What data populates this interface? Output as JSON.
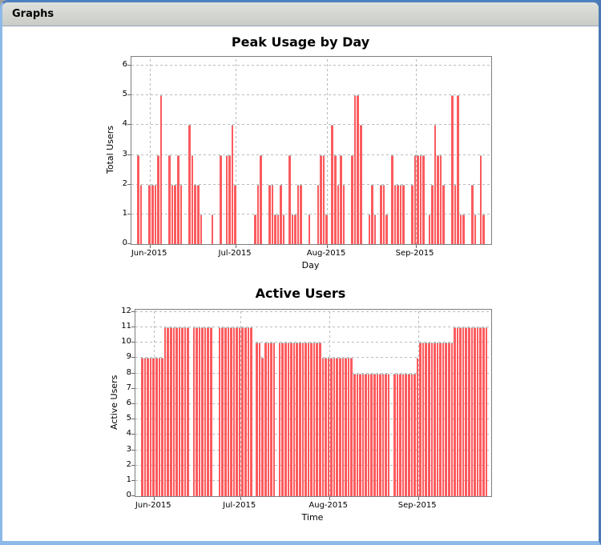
{
  "window": {
    "title": "Graphs"
  },
  "colors": {
    "bar_fill": "#FB5B5E",
    "bar_outline": "#B2B2B2",
    "gridline": "#BBBBBB",
    "plot_border": "#7F7F7F",
    "frame_blue": "#4878B4",
    "frame_light_blue": "#8DB9E8",
    "titlebar_bg": "#D3D5D1"
  },
  "chart_data": [
    {
      "type": "bar",
      "title": "Peak Usage by Day",
      "xlabel": "Day",
      "ylabel": "Total Users",
      "ylim": [
        0,
        6
      ],
      "grid": true,
      "legend": "none",
      "bar_color": "#FB5B5E",
      "y_ticks": [
        0,
        1,
        2,
        3,
        4,
        5,
        6
      ],
      "x_ticks": [
        {
          "label": "Jun-2015",
          "index": 6
        },
        {
          "label": "Jul-2015",
          "index": 36
        },
        {
          "label": "Aug-2015",
          "index": 68
        },
        {
          "label": "Sep-2015",
          "index": 99
        }
      ],
      "values": [
        0,
        0,
        3,
        2,
        0,
        0,
        2,
        2,
        2,
        3,
        5,
        0,
        0,
        3,
        2,
        2,
        3,
        2,
        0,
        0,
        4,
        3,
        2,
        2,
        1,
        0,
        0,
        0,
        1,
        0,
        0,
        3,
        0,
        3,
        3,
        4,
        2,
        0,
        0,
        0,
        0,
        0,
        0,
        1,
        2,
        3,
        0,
        0,
        2,
        2,
        1,
        1,
        2,
        1,
        0,
        3,
        1,
        1,
        2,
        2,
        0,
        0,
        1,
        0,
        0,
        2,
        3,
        3,
        1,
        0,
        4,
        3,
        2,
        3,
        2,
        0,
        0,
        3,
        5,
        5,
        4,
        0,
        0,
        1,
        2,
        1,
        0,
        2,
        2,
        1,
        0,
        3,
        2,
        2,
        2,
        2,
        0,
        0,
        2,
        3,
        3,
        3,
        3,
        0,
        1,
        2,
        4,
        3,
        3,
        2,
        0,
        0,
        5,
        2,
        5,
        1,
        1,
        0,
        0,
        2,
        1,
        0,
        3,
        1,
        0,
        0
      ]
    },
    {
      "type": "bar",
      "title": "Active Users",
      "xlabel": "Time",
      "ylabel": "Active Users",
      "ylim": [
        0,
        12
      ],
      "grid": true,
      "legend": "none",
      "bar_color": "#FB5B5E",
      "y_ticks": [
        0,
        1,
        2,
        3,
        4,
        5,
        6,
        7,
        8,
        9,
        10,
        11,
        12
      ],
      "x_ticks": [
        {
          "label": "Jun-2015",
          "index": 6
        },
        {
          "label": "Jul-2015",
          "index": 36
        },
        {
          "label": "Aug-2015",
          "index": 67
        },
        {
          "label": "Sep-2015",
          "index": 98
        }
      ],
      "values": [
        0,
        0,
        9,
        9,
        9,
        9,
        9,
        9,
        9,
        9,
        11,
        11,
        11,
        11,
        11,
        11,
        11,
        11,
        11,
        0,
        11,
        11,
        11,
        11,
        11,
        11,
        11,
        0,
        0,
        11,
        11,
        11,
        11,
        11,
        11,
        11,
        11,
        11,
        11,
        11,
        11,
        0,
        10,
        10,
        9,
        10,
        10,
        10,
        10,
        0,
        10,
        10,
        10,
        10,
        10,
        10,
        10,
        10,
        10,
        10,
        10,
        10,
        10,
        10,
        10,
        9,
        9,
        9,
        9,
        9,
        9,
        9,
        9,
        9,
        9,
        9,
        8,
        8,
        8,
        8,
        8,
        8,
        8,
        8,
        8,
        8,
        8,
        8,
        8,
        0,
        8,
        8,
        8,
        8,
        8,
        8,
        8,
        8,
        9,
        10,
        10,
        10,
        10,
        10,
        10,
        10,
        10,
        10,
        10,
        10,
        10,
        11,
        11,
        11,
        11,
        11,
        11,
        11,
        11,
        11,
        11,
        11,
        11,
        0
      ]
    }
  ]
}
